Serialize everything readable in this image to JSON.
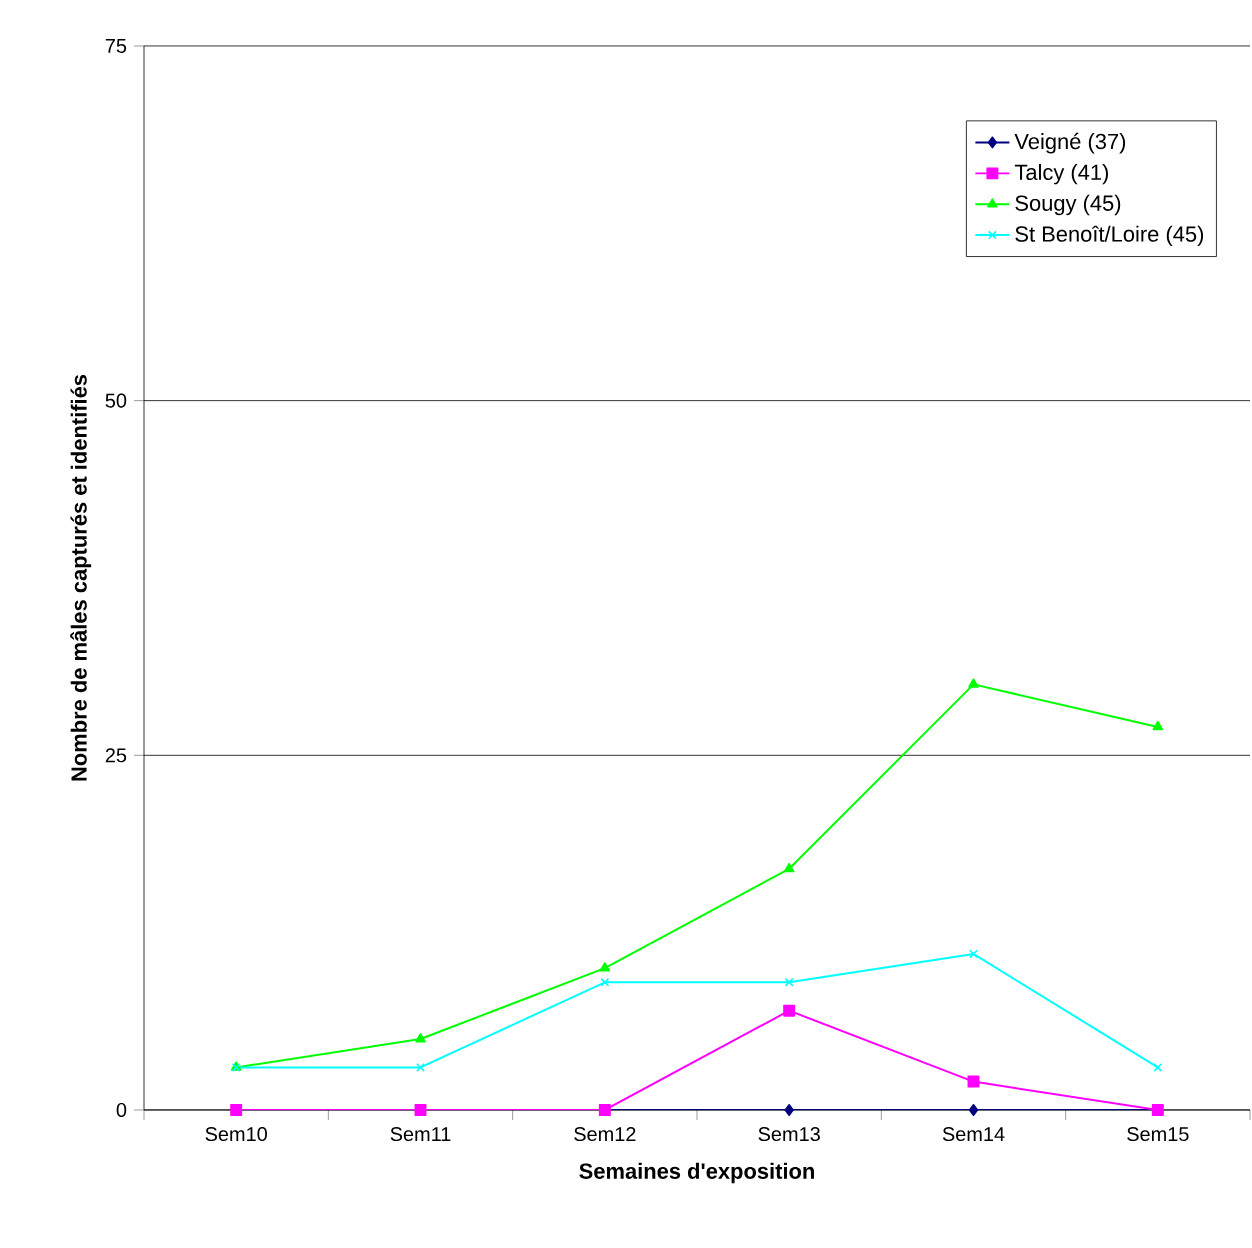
{
  "chart_data": {
    "type": "line",
    "xlabel": "Semaines d'exposition",
    "ylabel": "Nombre de mâles capturés et identifiés",
    "categories": [
      "Sem10",
      "Sem11",
      "Sem12",
      "Sem13",
      "Sem14",
      "Sem15"
    ],
    "ylim": [
      0,
      75
    ],
    "yticks": [
      0,
      25,
      50,
      75
    ],
    "grid": "y",
    "legend": "top right",
    "line_style": "solid",
    "series": [
      {
        "name": "Veigné (37)",
        "color": "#000080",
        "marker": "diamond",
        "values": [
          0,
          0,
          0,
          0,
          0,
          0
        ]
      },
      {
        "name": "Talcy (41)",
        "color": "#ff00ff",
        "marker": "square",
        "values": [
          0,
          0,
          0,
          7,
          2,
          0
        ]
      },
      {
        "name": "Sougy (45)",
        "color": "#00ff00",
        "marker": "triangle",
        "values": [
          3,
          5,
          10,
          17,
          30,
          27
        ]
      },
      {
        "name": "St Benoît/Loire (45)",
        "color": "#00ffff",
        "marker": "cross",
        "values": [
          3,
          3,
          9,
          9,
          11,
          3
        ]
      }
    ]
  }
}
